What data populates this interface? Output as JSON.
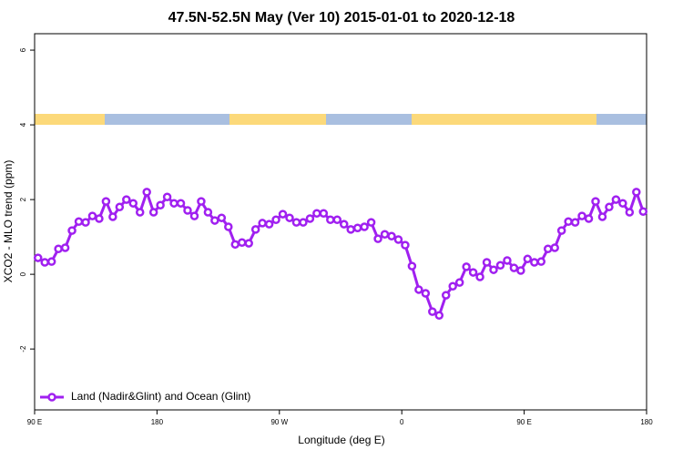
{
  "chart_data": {
    "type": "line",
    "title": "47.5N-52.5N May (Ver 10)   2015-01-01 to 2020-12-18",
    "x_label": "Longitude (deg E)",
    "y_label": "XCO2 - MLO trend (ppm)",
    "x": [
      92.5,
      97.5,
      102.5,
      107.5,
      112.5,
      117.5,
      122.5,
      127.5,
      132.5,
      137.5,
      142.5,
      147.5,
      152.5,
      157.5,
      162.5,
      167.5,
      172.5,
      177.5,
      182.5,
      187.5,
      192.5,
      197.5,
      202.5,
      207.5,
      212.5,
      217.5,
      222.5,
      227.5,
      232.5,
      237.5,
      242.5,
      247.5,
      252.5,
      257.5,
      262.5,
      267.5,
      272.5,
      277.5,
      282.5,
      287.5,
      292.5,
      297.5,
      302.5,
      307.5,
      312.5,
      317.5,
      322.5,
      327.5,
      332.5,
      337.5,
      342.5,
      347.5,
      352.5,
      357.5,
      362.5,
      367.5,
      372.5,
      377.5,
      382.5,
      387.5,
      392.5,
      397.5,
      402.5,
      407.5,
      412.5,
      417.5,
      422.5,
      427.5,
      432.5,
      437.5,
      442.5,
      447.5,
      452.5,
      457.5,
      462.5,
      467.5,
      472.5,
      477.5,
      482.5,
      487.5,
      492.5,
      497.5,
      502.5,
      507.5,
      512.5,
      517.5,
      522.5,
      527.5,
      532.5,
      537.5
    ],
    "series": [
      {
        "name": "Land (Nadir&Glint) and Ocean (Glint)",
        "color": "#a020f0",
        "values": [
          0.44,
          0.32,
          0.34,
          0.68,
          0.71,
          1.17,
          1.41,
          1.39,
          1.56,
          1.49,
          1.95,
          1.54,
          1.8,
          2.0,
          1.9,
          1.66,
          2.2,
          1.66,
          1.85,
          2.07,
          1.9,
          1.9,
          1.71,
          1.56,
          1.95,
          1.66,
          1.44,
          1.51,
          1.27,
          0.8,
          0.85,
          0.83,
          1.2,
          1.37,
          1.34,
          1.46,
          1.61,
          1.51,
          1.39,
          1.39,
          1.49,
          1.63,
          1.63,
          1.46,
          1.46,
          1.34,
          1.2,
          1.24,
          1.27,
          1.39,
          0.95,
          1.07,
          1.02,
          0.93,
          0.78,
          0.22,
          -0.41,
          -0.51,
          -1.0,
          -1.1,
          -0.56,
          -0.32,
          -0.22,
          0.2,
          0.05,
          -0.07,
          0.32,
          0.12,
          0.24,
          0.37,
          0.17,
          0.1,
          0.41,
          0.32,
          0.34,
          0.68,
          0.71,
          1.17,
          1.41,
          1.39,
          1.56,
          1.49,
          1.95,
          1.54,
          1.8,
          2.0,
          1.9,
          1.66,
          2.2,
          1.68
        ]
      }
    ],
    "xlim": [
      90,
      540
    ],
    "xticks": [
      {
        "value": 90,
        "label": "90 E"
      },
      {
        "value": 180,
        "label": "180"
      },
      {
        "value": 270,
        "label": "90 W"
      },
      {
        "value": 360,
        "label": "0"
      },
      {
        "value": 450,
        "label": "90 E"
      },
      {
        "value": 540,
        "label": "180"
      }
    ],
    "ylim": [
      -3.63,
      6.44
    ],
    "yticks": [
      -2,
      0,
      2,
      4,
      6
    ],
    "legend": "bottomleft"
  }
}
